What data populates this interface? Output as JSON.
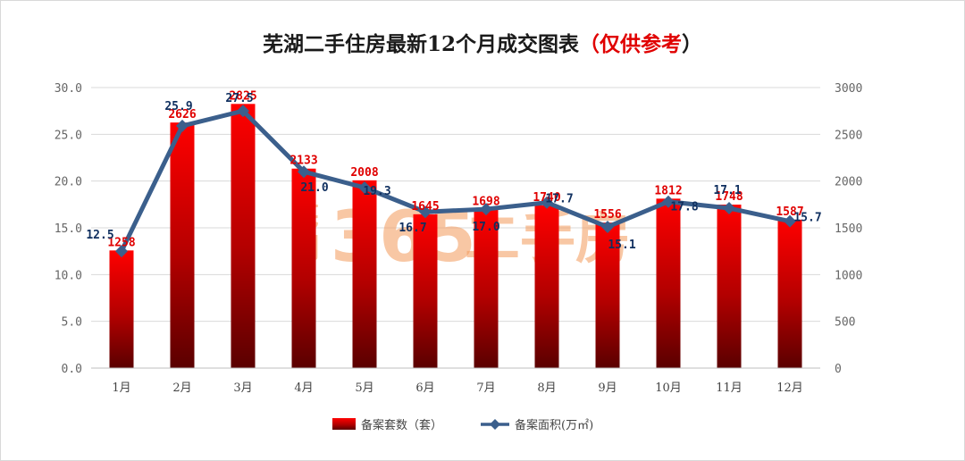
{
  "title": {
    "main": "芜湖二手住房最新12个月成交图表",
    "open_paren": "（",
    "highlight": "仅供参考",
    "close_paren": "）"
  },
  "watermark": {
    "city": "芜湖",
    "number": "365",
    "text": "二手房"
  },
  "colors": {
    "bar_top": "#ff0000",
    "bar_bottom": "#5a0000",
    "line": "#3b5f8c",
    "bar_label": "#e00000",
    "line_label": "#0f2f5f"
  },
  "chart_data": {
    "type": "bar",
    "categories": [
      "1月",
      "2月",
      "3月",
      "4月",
      "5月",
      "6月",
      "7月",
      "8月",
      "9月",
      "10月",
      "11月",
      "12月"
    ],
    "series": [
      {
        "name": "备案套数（套）",
        "type": "bar",
        "axis": "right",
        "values": [
          1258,
          2626,
          2825,
          2133,
          2008,
          1645,
          1698,
          1740,
          1556,
          1812,
          1748,
          1587
        ]
      },
      {
        "name": "备案面积(万㎡)",
        "type": "line",
        "axis": "left",
        "values": [
          12.5,
          25.9,
          27.5,
          21.0,
          19.3,
          16.7,
          17.0,
          17.7,
          15.1,
          17.8,
          17.1,
          15.7
        ]
      }
    ],
    "y_left": {
      "min": 0,
      "max": 30,
      "ticks": [
        "0.0",
        "5.0",
        "10.0",
        "15.0",
        "20.0",
        "25.0",
        "30.0"
      ]
    },
    "y_right": {
      "min": 0,
      "max": 3000,
      "ticks": [
        "0",
        "500",
        "1000",
        "1500",
        "2000",
        "2500",
        "3000"
      ]
    },
    "grid": true,
    "legend_position": "bottom"
  }
}
